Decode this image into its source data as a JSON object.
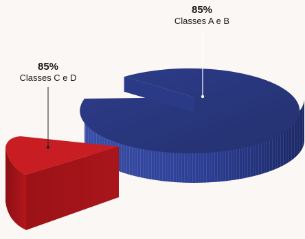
{
  "chart_data": {
    "type": "pie",
    "title": "",
    "series": [
      {
        "name": "Classes A e B",
        "value": 85,
        "label": "85%",
        "color": "#2e3f8e"
      },
      {
        "name": "Classes C e D",
        "value": 85,
        "label": "85%",
        "color": "#b0181d"
      }
    ],
    "legend": "none",
    "style": "3d-exploded"
  }
}
